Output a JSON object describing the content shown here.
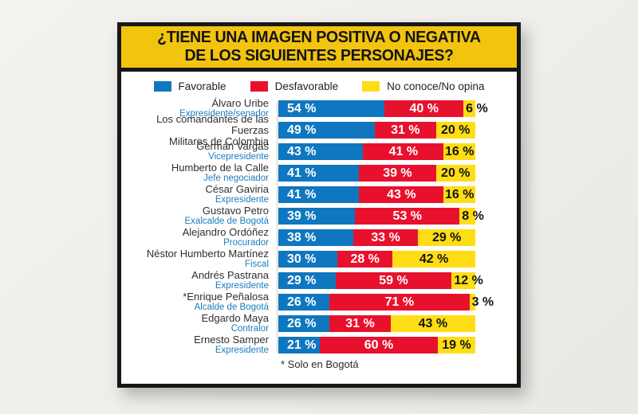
{
  "header": {
    "title_line1": "¿TIENE UNA IMAGEN POSITIVA O NEGATIVA",
    "title_line2": "DE LOS SIGUIENTES PERSONAJES?"
  },
  "legend": [
    {
      "label": "Favorable",
      "color": "#0f77bf"
    },
    {
      "label": "Desfavorable",
      "color": "#e8112d"
    },
    {
      "label": "No conoce/No opina",
      "color": "#ffdd15"
    }
  ],
  "colors": {
    "header_yellow": "#f2c40e",
    "bar_blue": "#0f77bf",
    "bar_red": "#e8112d",
    "bar_yellow": "#ffdd15",
    "role_blue": "#1b7cbe",
    "card_border": "#171717"
  },
  "chart_data": {
    "type": "bar",
    "stacked": true,
    "orientation": "horizontal",
    "title": "¿TIENE UNA IMAGEN POSITIVA O NEGATIVA DE LOS SIGUIENTES PERSONAJES?",
    "unit": "%",
    "xlim": [
      0,
      100
    ],
    "grid": false,
    "legend_position": "top",
    "categories": [
      "Álvaro Uribe",
      "Los comandantes de las Fuerzas\nMilitares de Colombia",
      "Germán Vargas",
      "Humberto de la Calle",
      "César Gaviria",
      "Gustavo Petro",
      "Alejandro Ordóñez",
      "Néstor Humberto Martínez",
      "Andrés Pastrana",
      "*Enrique Peñalosa",
      "Edgardo Maya",
      "Ernesto Samper"
    ],
    "category_roles": [
      "Expresidente/senador",
      "",
      "Vicepresidente",
      "Jefe negociador",
      "Expresidente",
      "Exalcalde de Bogotá",
      "Procurador",
      "Fiscal",
      "Expresidente",
      "Alcalde de Bogotá",
      "Contralor",
      "Expresidente"
    ],
    "series": [
      {
        "name": "Favorable",
        "color": "#0f77bf",
        "values": [
          54,
          49,
          43,
          41,
          41,
          39,
          38,
          30,
          29,
          26,
          26,
          21
        ]
      },
      {
        "name": "Desfavorable",
        "color": "#e8112d",
        "values": [
          40,
          31,
          41,
          39,
          43,
          53,
          33,
          28,
          59,
          71,
          31,
          60
        ]
      },
      {
        "name": "No conoce/No opina",
        "color": "#ffdd15",
        "values": [
          6,
          20,
          16,
          20,
          16,
          8,
          29,
          42,
          12,
          3,
          43,
          19
        ]
      }
    ],
    "footnote": "* Solo en Bogotá"
  }
}
